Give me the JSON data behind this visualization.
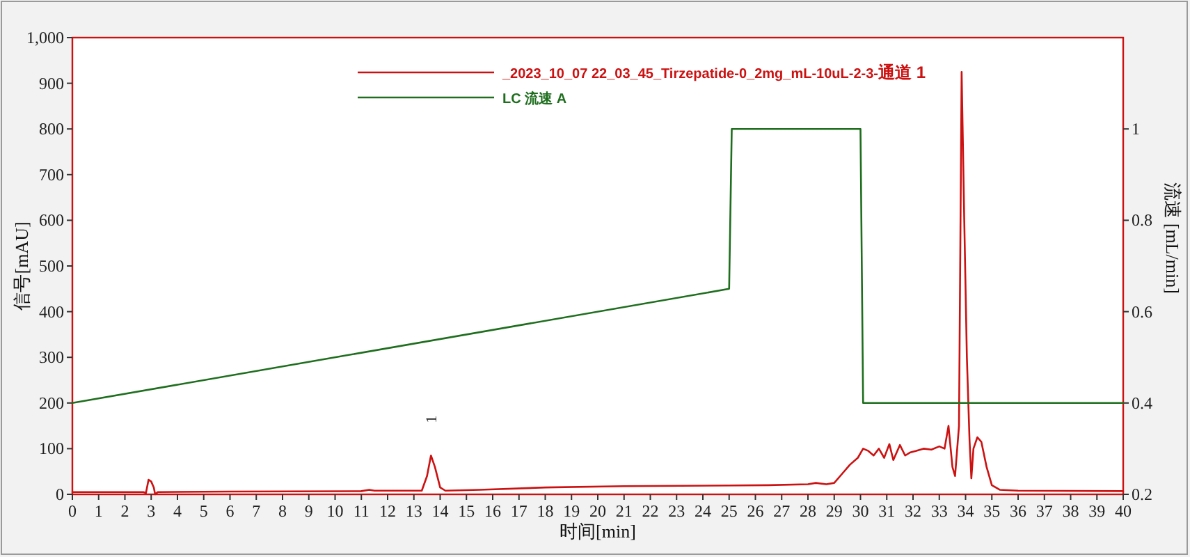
{
  "chart_data": {
    "type": "line",
    "xlabel": "时间[min]",
    "ylabel": "信号[mAU]",
    "y2label": "流速 [mL/min]",
    "xlim": [
      0,
      40
    ],
    "ylim": [
      0,
      1000
    ],
    "y2lim": [
      0.2,
      1.2
    ],
    "xticks": [
      0,
      1,
      2,
      3,
      4,
      5,
      6,
      7,
      8,
      9,
      10,
      11,
      12,
      13,
      14,
      15,
      16,
      17,
      18,
      19,
      20,
      21,
      22,
      23,
      24,
      25,
      26,
      27,
      28,
      29,
      30,
      31,
      32,
      33,
      34,
      35,
      36,
      37,
      38,
      39,
      40
    ],
    "yticks": [
      0,
      100,
      200,
      300,
      400,
      500,
      600,
      700,
      800,
      900,
      {
        "value": 1000,
        "label": "1,000"
      }
    ],
    "y2ticks": [
      0.2,
      0.4,
      0.6,
      0.8,
      1
    ],
    "legend": "top",
    "line_style": "solid",
    "annotations": [
      {
        "text": "1",
        "x": 13.65,
        "y": 85
      }
    ],
    "series": [
      {
        "name": "_2023_10_07 22_03_45_Tirzepatide-0_2mg_mL-10uL-2-3-**通道 1**",
        "color": "#cc1111",
        "x": [
          0,
          2.7,
          2.8,
          2.9,
          3.0,
          3.1,
          3.15,
          3.25,
          6,
          11,
          11.3,
          11.5,
          13.3,
          13.5,
          13.65,
          13.8,
          14.0,
          14.2,
          15.5,
          18,
          21,
          26.5,
          28,
          28.3,
          28.7,
          29,
          29.3,
          29.6,
          29.9,
          30.1,
          30.3,
          30.5,
          30.7,
          30.9,
          31.1,
          31.25,
          31.5,
          31.7,
          31.9,
          32.1,
          32.4,
          32.7,
          33,
          33.2,
          33.35,
          33.5,
          33.6,
          33.75,
          33.85,
          33.95,
          34.05,
          34.15,
          34.22,
          34.3,
          34.45,
          34.6,
          34.8,
          35,
          35.3,
          36,
          40
        ],
        "values": [
          5,
          5,
          3,
          32,
          28,
          15,
          0,
          5,
          6,
          7,
          10,
          8,
          8,
          40,
          85,
          60,
          15,
          8,
          10,
          15,
          18,
          20,
          22,
          25,
          22,
          25,
          45,
          65,
          80,
          100,
          95,
          85,
          100,
          80,
          110,
          75,
          108,
          85,
          92,
          95,
          100,
          98,
          105,
          100,
          150,
          60,
          40,
          150,
          925,
          600,
          300,
          120,
          35,
          100,
          125,
          115,
          60,
          20,
          10,
          8,
          7
        ]
      },
      {
        "name": "LC 流速 A",
        "color": "#1e6e1e",
        "axis": "y2",
        "x": [
          0,
          25,
          25.1,
          30,
          30.1,
          40
        ],
        "values": [
          0.4,
          0.65,
          1,
          1,
          0.4,
          0.4
        ]
      }
    ]
  }
}
